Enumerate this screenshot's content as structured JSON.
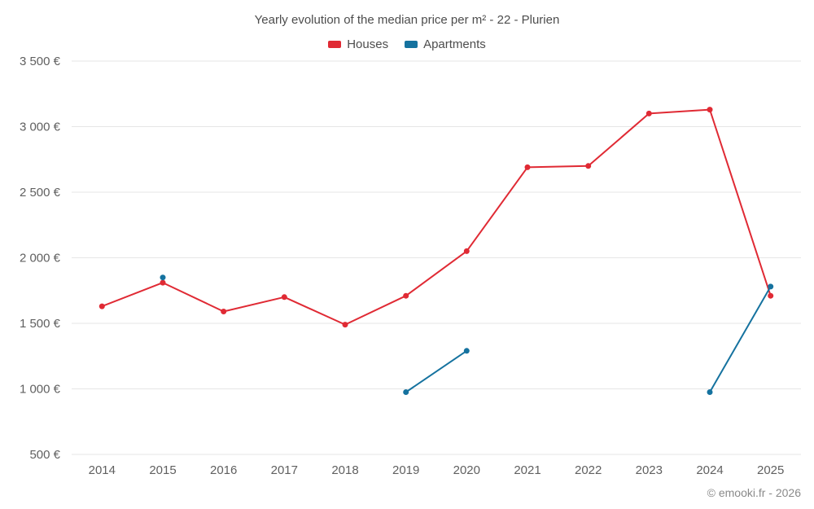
{
  "title": "Yearly evolution of the median price per m² - 22 - Plurien",
  "footer": {
    "credit": "© emooki.fr - 2026"
  },
  "chart_data": {
    "type": "line",
    "title": "Yearly evolution of the median price per m² - 22 - Plurien",
    "categories": [
      "2014",
      "2015",
      "2016",
      "2017",
      "2018",
      "2019",
      "2020",
      "2021",
      "2022",
      "2023",
      "2024",
      "2025"
    ],
    "series": [
      {
        "name": "Houses",
        "color": "#e02a34",
        "values": [
          1630,
          1810,
          1590,
          1700,
          1490,
          1710,
          2050,
          2690,
          2700,
          3100,
          3130,
          1710
        ]
      },
      {
        "name": "Apartments",
        "color": "#15729f",
        "values": [
          null,
          1850,
          null,
          null,
          null,
          975,
          1290,
          null,
          null,
          null,
          975,
          1780
        ]
      }
    ],
    "xlabel": "",
    "ylabel": "",
    "ylim": [
      500,
      3500
    ],
    "ytick_step": 500,
    "ytick_labels": [
      "500 €",
      "1 000 €",
      "1 500 €",
      "2 000 €",
      "2 500 €",
      "3 000 €",
      "3 500 €"
    ],
    "grid": "horizontal",
    "legend_position": "top",
    "legend": [
      "Houses",
      "Apartments"
    ]
  }
}
